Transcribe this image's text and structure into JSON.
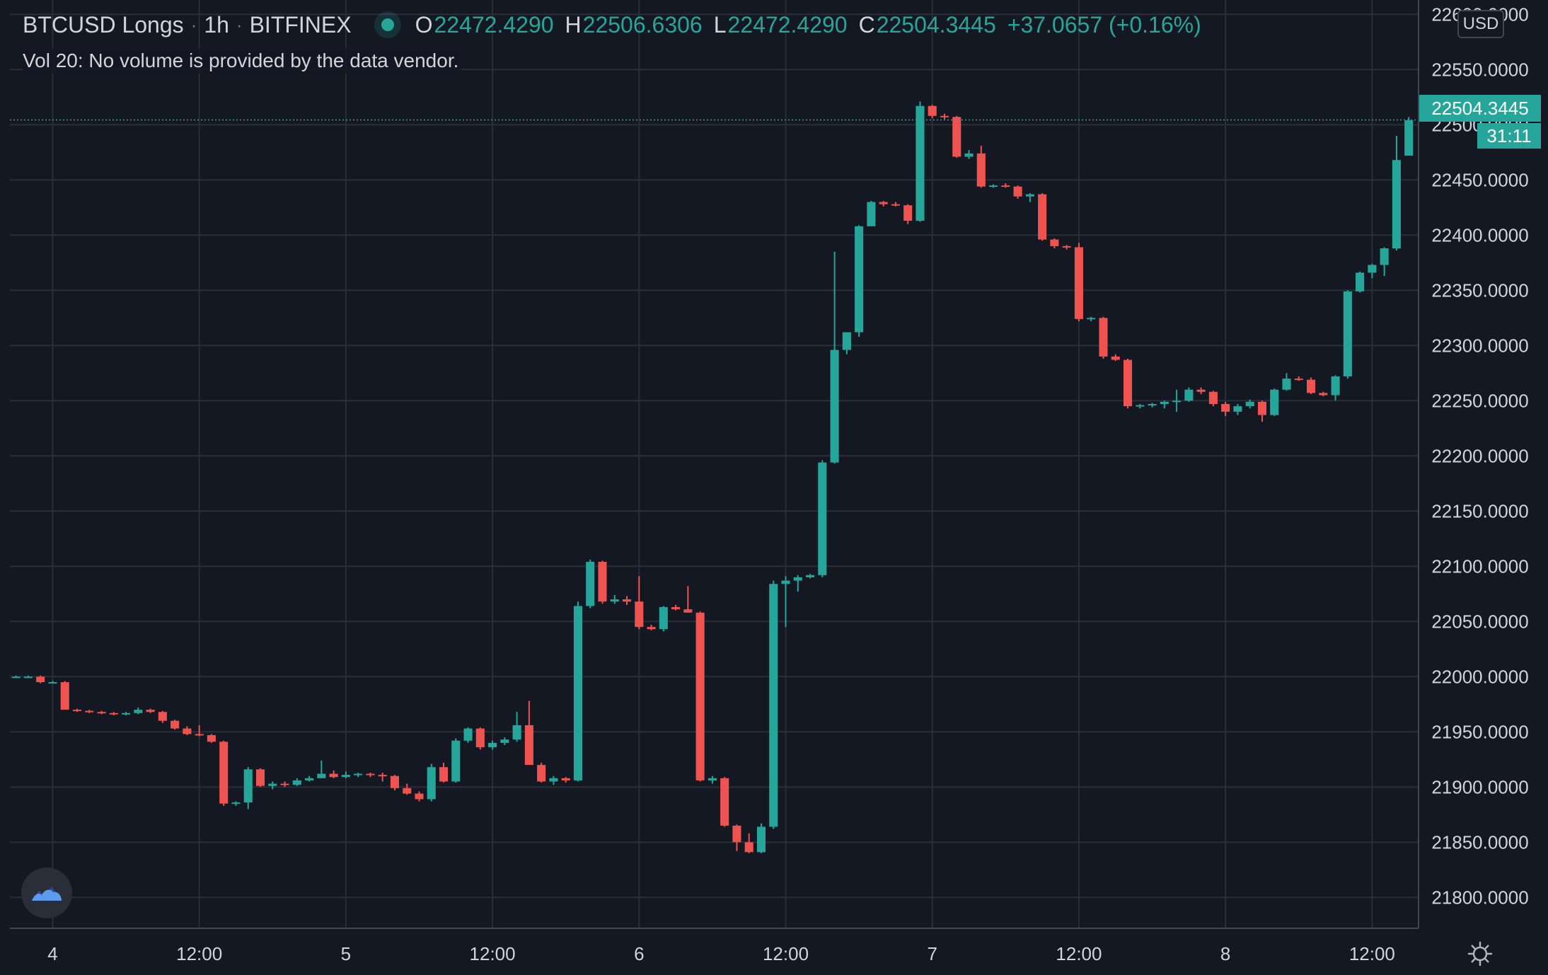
{
  "header": {
    "symbol": "BTCUSD Longs",
    "interval": "1h",
    "exchange": "BITFINEX",
    "sep": "·",
    "open_key": "O",
    "open": "22472.4290",
    "high_key": "H",
    "high": "22506.6306",
    "low_key": "L",
    "low": "22472.4290",
    "close_key": "C",
    "close": "22504.3445",
    "change": "+37.0657 (+0.16%)",
    "volume_note": "Vol 20: No volume is provided by the data vendor."
  },
  "price_axis": {
    "currency": "USD",
    "last_price_label": "22504.3445",
    "countdown": "31:11"
  },
  "colors": {
    "background": "#141823",
    "grid": "#2a2e39",
    "up": "#26a69a",
    "down": "#ef5350",
    "axis_text": "#d1d4dc"
  },
  "icons": {
    "logo": "tradingview-cloud-icon",
    "settings": "gear-icon",
    "live": "live-dot-icon"
  },
  "chart_data": {
    "type": "candlestick",
    "x_unit": "hour index",
    "x_ticks": [
      {
        "x": 3,
        "label": "4"
      },
      {
        "x": 15,
        "label": "12:00"
      },
      {
        "x": 27,
        "label": "5"
      },
      {
        "x": 39,
        "label": "12:00"
      },
      {
        "x": 51,
        "label": "6"
      },
      {
        "x": 63,
        "label": "12:00"
      },
      {
        "x": 75,
        "label": "7"
      },
      {
        "x": 87,
        "label": "12:00"
      },
      {
        "x": 99,
        "label": "8"
      },
      {
        "x": 111,
        "label": "12:00"
      }
    ],
    "y_ticks": [
      {
        "v": 21800,
        "label": "21800.0000"
      },
      {
        "v": 21850,
        "label": "21850.0000"
      },
      {
        "v": 21900,
        "label": "21900.0000"
      },
      {
        "v": 21950,
        "label": "21950.0000"
      },
      {
        "v": 22000,
        "label": "22000.0000"
      },
      {
        "v": 22050,
        "label": "22050.0000"
      },
      {
        "v": 22100,
        "label": "22100.0000"
      },
      {
        "v": 22150,
        "label": "22150.0000"
      },
      {
        "v": 22200,
        "label": "22200.0000"
      },
      {
        "v": 22250,
        "label": "22250.0000"
      },
      {
        "v": 22300,
        "label": "22300.0000"
      },
      {
        "v": 22350,
        "label": "22350.0000"
      },
      {
        "v": 22400,
        "label": "22400.0000"
      },
      {
        "v": 22450,
        "label": "22450.0000"
      },
      {
        "v": 22500,
        "label": "22500.0000"
      },
      {
        "v": 22550,
        "label": "22550.0000"
      },
      {
        "v": 22600,
        "label": "22600.0000"
      }
    ],
    "y_range": [
      21772,
      22613
    ],
    "x_range": [
      -0.5,
      114.8
    ],
    "last_price": 22504.3445,
    "candles": [
      [
        22000,
        22001,
        21999,
        22000
      ],
      [
        22000,
        22001,
        21999,
        22000
      ],
      [
        22000,
        22001,
        21994,
        21995
      ],
      [
        21995,
        21996,
        21994,
        21995
      ],
      [
        21995,
        21996,
        21970,
        21970
      ],
      [
        21970,
        21971,
        21968,
        21969
      ],
      [
        21969,
        21970,
        21967,
        21968
      ],
      [
        21968,
        21969,
        21966,
        21967
      ],
      [
        21967,
        21968,
        21965,
        21966
      ],
      [
        21966,
        21968,
        21965,
        21967
      ],
      [
        21967,
        21972,
        21966,
        21970
      ],
      [
        21970,
        21971,
        21967,
        21968
      ],
      [
        21968,
        21969,
        21958,
        21960
      ],
      [
        21960,
        21961,
        21952,
        21953
      ],
      [
        21953,
        21955,
        21947,
        21948
      ],
      [
        21948,
        21956,
        21946,
        21947
      ],
      [
        21947,
        21948,
        21940,
        21941
      ],
      [
        21941,
        21942,
        21883,
        21885
      ],
      [
        21885,
        21887,
        21883,
        21886
      ],
      [
        21886,
        21918,
        21880,
        21916
      ],
      [
        21916,
        21917,
        21900,
        21901
      ],
      [
        21901,
        21905,
        21898,
        21903
      ],
      [
        21903,
        21905,
        21900,
        21902
      ],
      [
        21902,
        21908,
        21901,
        21906
      ],
      [
        21906,
        21910,
        21905,
        21908
      ],
      [
        21908,
        21924,
        21908,
        21912
      ],
      [
        21912,
        21915,
        21908,
        21909
      ],
      [
        21909,
        21914,
        21908,
        21911
      ],
      [
        21911,
        21913,
        21909,
        21912
      ],
      [
        21912,
        21913,
        21909,
        21911
      ],
      [
        21911,
        21913,
        21905,
        21910
      ],
      [
        21910,
        21911,
        21897,
        21899
      ],
      [
        21899,
        21903,
        21893,
        21894
      ],
      [
        21894,
        21896,
        21887,
        21889
      ],
      [
        21889,
        21921,
        21887,
        21918
      ],
      [
        21918,
        21922,
        21904,
        21905
      ],
      [
        21905,
        21944,
        21904,
        21942
      ],
      [
        21942,
        21954,
        21940,
        21953
      ],
      [
        21953,
        21954,
        21934,
        21936
      ],
      [
        21936,
        21942,
        21934,
        21940
      ],
      [
        21940,
        21945,
        21938,
        21943
      ],
      [
        21943,
        21968,
        21941,
        21956
      ],
      [
        21956,
        21978,
        21920,
        21920
      ],
      [
        21920,
        21922,
        21904,
        21905
      ],
      [
        21905,
        21910,
        21902,
        21908
      ],
      [
        21908,
        21909,
        21904,
        21906
      ],
      [
        21906,
        22068,
        21905,
        22064
      ],
      [
        22064,
        22106,
        22062,
        22104
      ],
      [
        22104,
        22105,
        22066,
        22068
      ],
      [
        22068,
        22074,
        22066,
        22070
      ],
      [
        22070,
        22073,
        22065,
        22068
      ],
      [
        22068,
        22091,
        22043,
        22045
      ],
      [
        22045,
        22047,
        22042,
        22043
      ],
      [
        22043,
        22064,
        22041,
        22063
      ],
      [
        22063,
        22065,
        22060,
        22061
      ],
      [
        22061,
        22082,
        22058,
        22058
      ],
      [
        22058,
        22059,
        21905,
        21906
      ],
      [
        21906,
        21910,
        21903,
        21908
      ],
      [
        21908,
        21909,
        21864,
        21865
      ],
      [
        21865,
        21866,
        21842,
        21850
      ],
      [
        21850,
        21858,
        21840,
        21841
      ],
      [
        21841,
        21867,
        21840,
        21864
      ],
      [
        21864,
        22087,
        21862,
        22084
      ],
      [
        22084,
        22091,
        22045,
        22087
      ],
      [
        22087,
        22092,
        22077,
        22090
      ],
      [
        22090,
        22093,
        22089,
        22092
      ],
      [
        22092,
        22196,
        22090,
        22194
      ],
      [
        22194,
        22385,
        22193,
        22296
      ],
      [
        22296,
        22312,
        22292,
        22312
      ],
      [
        22312,
        22409,
        22308,
        22408
      ],
      [
        22408,
        22431,
        22410,
        22430
      ],
      [
        22430,
        22431,
        22426,
        22428
      ],
      [
        22428,
        22430,
        22426,
        22427
      ],
      [
        22427,
        22428,
        22410,
        22413
      ],
      [
        22413,
        22521,
        22412,
        22517
      ],
      [
        22517,
        22518,
        22506,
        22508
      ],
      [
        22508,
        22510,
        22505,
        22507
      ],
      [
        22507,
        22508,
        22470,
        22471
      ],
      [
        22471,
        22477,
        22469,
        22474
      ],
      [
        22474,
        22481,
        22443,
        22444
      ],
      [
        22444,
        22446,
        22443,
        22445
      ],
      [
        22445,
        22447,
        22443,
        22444
      ],
      [
        22444,
        22445,
        22433,
        22435
      ],
      [
        22435,
        22438,
        22430,
        22437
      ],
      [
        22437,
        22438,
        22395,
        22396
      ],
      [
        22396,
        22397,
        22388,
        22390
      ],
      [
        22390,
        22391,
        22387,
        22389
      ],
      [
        22389,
        22393,
        22322,
        22324
      ],
      [
        22324,
        22326,
        22322,
        22325
      ],
      [
        22325,
        22326,
        22288,
        22290
      ],
      [
        22290,
        22292,
        22286,
        22287
      ],
      [
        22287,
        22288,
        22243,
        22245
      ],
      [
        22245,
        22247,
        22243,
        22246
      ],
      [
        22246,
        22248,
        22244,
        22247
      ],
      [
        22247,
        22250,
        22243,
        22249
      ],
      [
        22249,
        22260,
        22240,
        22250
      ],
      [
        22250,
        22262,
        22249,
        22260
      ],
      [
        22260,
        22262,
        22256,
        22258
      ],
      [
        22258,
        22259,
        22245,
        22247
      ],
      [
        22247,
        22249,
        22236,
        22240
      ],
      [
        22240,
        22247,
        22237,
        22245
      ],
      [
        22245,
        22251,
        22243,
        22249
      ],
      [
        22249,
        22250,
        22231,
        22237
      ],
      [
        22237,
        22261,
        22236,
        22260
      ],
      [
        22260,
        22275,
        22259,
        22270
      ],
      [
        22270,
        22272,
        22268,
        22269
      ],
      [
        22269,
        22271,
        22256,
        22257
      ],
      [
        22257,
        22258,
        22254,
        22255
      ],
      [
        22255,
        22273,
        22250,
        22272
      ],
      [
        22272,
        22350,
        22270,
        22349
      ],
      [
        22349,
        22367,
        22348,
        22366
      ],
      [
        22366,
        22374,
        22361,
        22373
      ],
      [
        22373,
        22389,
        22363,
        22388
      ],
      [
        22388,
        22490,
        22386,
        22468
      ],
      [
        22472,
        22507,
        22472,
        22504
      ]
    ]
  }
}
